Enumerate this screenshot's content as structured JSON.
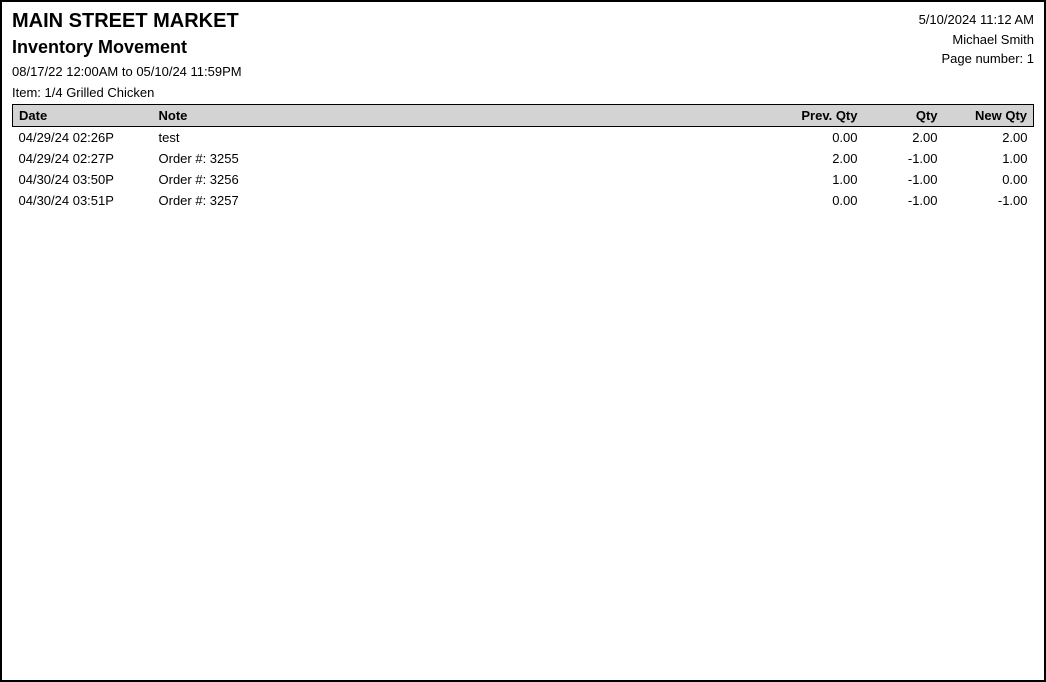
{
  "header": {
    "company": "MAIN STREET MARKET",
    "report_title": "Inventory Movement",
    "date_range": "08/17/22 12:00AM to 05/10/24 11:59PM",
    "item_line": "Item: 1/4 Grilled Chicken",
    "print_timestamp": "5/10/2024 11:12 AM",
    "user": "Michael Smith",
    "page_label": "Page number: 1"
  },
  "table": {
    "columns": {
      "date": "Date",
      "note": "Note",
      "prev_qty": "Prev. Qty",
      "qty": "Qty",
      "new_qty": "New Qty"
    },
    "rows": [
      {
        "date": "04/29/24 02:26P",
        "note": "test",
        "prev_qty": "0.00",
        "qty": "2.00",
        "new_qty": "2.00"
      },
      {
        "date": "04/29/24 02:27P",
        "note": "Order #: 3255",
        "prev_qty": "2.00",
        "qty": "-1.00",
        "new_qty": "1.00"
      },
      {
        "date": "04/30/24 03:50P",
        "note": "Order #: 3256",
        "prev_qty": "1.00",
        "qty": "-1.00",
        "new_qty": "0.00"
      },
      {
        "date": "04/30/24 03:51P",
        "note": "Order #: 3257",
        "prev_qty": "0.00",
        "qty": "-1.00",
        "new_qty": "-1.00"
      }
    ],
    "header_bg": "#d3d3d3",
    "border_color": "#000000",
    "font_size_pt": 10
  },
  "colors": {
    "page_bg": "#ffffff",
    "page_border": "#000000",
    "text": "#000000"
  }
}
